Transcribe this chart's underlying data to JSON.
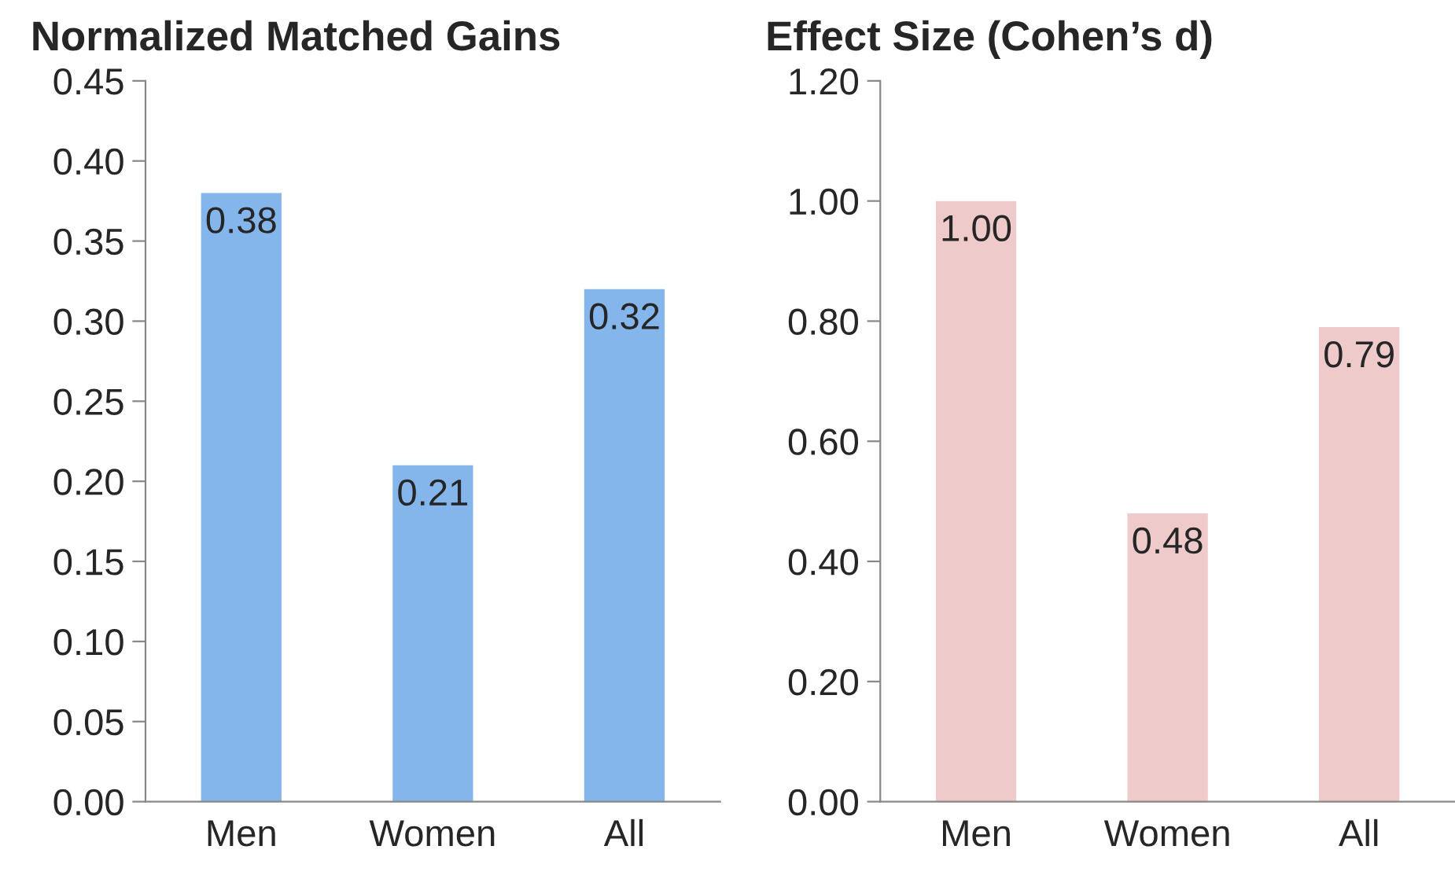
{
  "chart_data": [
    {
      "type": "bar",
      "title": "Normalized Matched Gains",
      "categories": [
        "Men",
        "Women",
        "All"
      ],
      "values": [
        0.38,
        0.21,
        0.32
      ],
      "value_labels": [
        "0.38",
        "0.21",
        "0.32"
      ],
      "color": "#84b6ec",
      "grid": false,
      "ylim": [
        0,
        0.45
      ],
      "yticks": [
        {
          "value": 0,
          "label": "0.00"
        },
        {
          "value": 0.05,
          "label": "0.05"
        },
        {
          "value": 0.1,
          "label": "0.10"
        },
        {
          "value": 0.15,
          "label": "0.15"
        },
        {
          "value": 0.2,
          "label": "0.20"
        },
        {
          "value": 0.25,
          "label": "0.25"
        },
        {
          "value": 0.3,
          "label": "0.30"
        },
        {
          "value": 0.35,
          "label": "0.35"
        },
        {
          "value": 0.4,
          "label": "0.40"
        },
        {
          "value": 0.45,
          "label": "0.45"
        }
      ]
    },
    {
      "type": "bar",
      "title": "Effect Size (Cohen’s d)",
      "categories": [
        "Men",
        "Women",
        "All"
      ],
      "values": [
        1.0,
        0.48,
        0.79
      ],
      "value_labels": [
        "1.00",
        "0.48",
        "0.79"
      ],
      "color": "#eecaca",
      "grid": false,
      "ylim": [
        0,
        1.2
      ],
      "yticks": [
        {
          "value": 0,
          "label": "0.00"
        },
        {
          "value": 0.2,
          "label": "0.20"
        },
        {
          "value": 0.4,
          "label": "0.40"
        },
        {
          "value": 0.6,
          "label": "0.60"
        },
        {
          "value": 0.8,
          "label": "0.80"
        },
        {
          "value": 1.0,
          "label": "1.00"
        },
        {
          "value": 1.2,
          "label": "1.20"
        }
      ]
    }
  ]
}
